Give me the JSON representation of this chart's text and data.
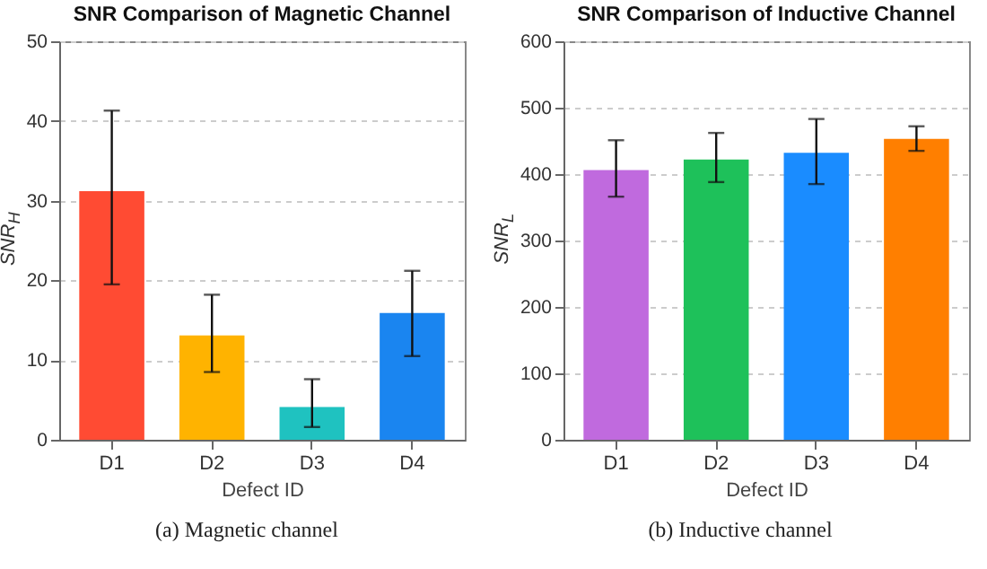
{
  "chart_data": [
    {
      "type": "bar",
      "title": "SNR Comparison of Magnetic Channel",
      "xlabel": "Defect ID",
      "ylabel": "SNR$_{H}$",
      "categories": [
        "D1",
        "D2",
        "D3",
        "D4"
      ],
      "values": [
        31.2,
        13.1,
        4.1,
        15.9
      ],
      "colors": [
        "#ff4b33",
        "#ffb300",
        "#1fc2c0",
        "#1a85f0"
      ],
      "errors": [
        [
          19.5,
          41.3
        ],
        [
          8.5,
          18.2
        ],
        [
          1.6,
          7.6
        ],
        [
          10.5,
          21.2
        ]
      ],
      "ylim": [
        0,
        50
      ],
      "yticks": [
        0,
        10,
        20,
        30,
        40,
        50
      ],
      "grid": "y",
      "annotations": [
        "(a) Magnetic channel"
      ]
    },
    {
      "type": "bar",
      "title": "SNR Comparison of Inductive Channel",
      "xlabel": "Defect ID",
      "ylabel": "SNR$_{L}$",
      "categories": [
        "D1",
        "D2",
        "D3",
        "D4"
      ],
      "values": [
        406,
        422,
        432,
        453
      ],
      "colors": [
        "#c06ade",
        "#1ec15a",
        "#1a8cff",
        "#ff7f00"
      ],
      "errors": [
        [
          366,
          451
        ],
        [
          388,
          462
        ],
        [
          385,
          483
        ],
        [
          435,
          472
        ]
      ],
      "ylim": [
        0,
        600
      ],
      "yticks": [
        0,
        100,
        200,
        300,
        400,
        500,
        600
      ],
      "grid": "y",
      "annotations": [
        "(b) Inductive channel"
      ]
    }
  ]
}
